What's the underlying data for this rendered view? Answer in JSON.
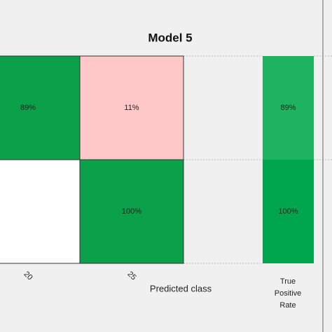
{
  "chart_data": {
    "type": "heatmap",
    "title": "Model 5",
    "x_label": "Predicted class",
    "categories": [
      "20",
      "25"
    ],
    "values": [
      [
        89,
        11
      ],
      [
        null,
        100
      ]
    ],
    "value_labels": [
      [
        "89%",
        "11%"
      ],
      [
        null,
        "100%"
      ]
    ],
    "colors": [
      [
        "#0aa14a",
        "#ffc8c8"
      ],
      [
        "#ffffff",
        "#0aa14a"
      ]
    ],
    "summary": {
      "label": "True Positive Rate",
      "values": [
        89,
        100
      ],
      "value_labels": [
        "89%",
        "100%"
      ],
      "colors": [
        "#1db35f",
        "#00a64d"
      ]
    }
  }
}
